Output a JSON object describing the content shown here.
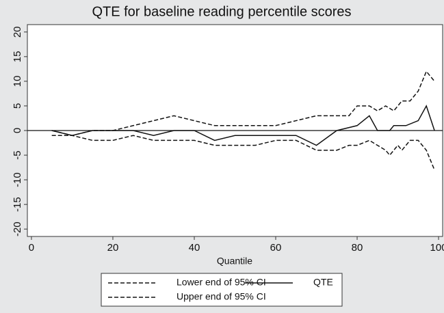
{
  "chart_data": {
    "type": "line",
    "title": "QTE for baseline reading percentile scores",
    "x_label": "Quantile",
    "series": [
      {
        "name": "Lower end of 95% CI",
        "color": "#111111",
        "style": "dashed",
        "x": [
          5,
          10,
          15,
          20,
          25,
          30,
          35,
          40,
          45,
          50,
          55,
          60,
          65,
          70,
          75,
          78,
          80,
          83,
          85,
          87,
          88,
          90,
          91,
          93,
          95,
          97,
          99
        ],
        "values": [
          -1,
          -1,
          -2,
          -2,
          -1,
          -2,
          -2,
          -2,
          -3,
          -3,
          -3,
          -2,
          -2,
          -4,
          -4,
          -3,
          -3,
          -2,
          -3,
          -4,
          -5,
          -3,
          -4,
          -2,
          -2,
          -4,
          -8
        ]
      },
      {
        "name": "QTE",
        "color": "#111111",
        "style": "solid",
        "x": [
          5,
          10,
          15,
          20,
          25,
          30,
          35,
          40,
          45,
          50,
          55,
          60,
          65,
          70,
          75,
          80,
          83,
          85,
          88,
          89,
          92,
          95,
          97,
          99
        ],
        "values": [
          0,
          -1,
          0,
          0,
          0,
          -1,
          0,
          0,
          -2,
          -1,
          -1,
          -1,
          -1,
          -3,
          0,
          1,
          3,
          0,
          0,
          1,
          1,
          2,
          5,
          0
        ]
      },
      {
        "name": "Upper end of 95% CI",
        "color": "#111111",
        "style": "dashed",
        "x": [
          5,
          10,
          15,
          20,
          25,
          30,
          35,
          40,
          45,
          50,
          55,
          60,
          65,
          70,
          75,
          78,
          80,
          83,
          85,
          87,
          89,
          91,
          93,
          95,
          97,
          99
        ],
        "values": [
          0,
          -1,
          0,
          0,
          1,
          2,
          3,
          2,
          1,
          1,
          1,
          1,
          2,
          3,
          3,
          3,
          5,
          5,
          4,
          5,
          4,
          6,
          6,
          8,
          12,
          10
        ]
      }
    ],
    "xlim": [
      -1,
      101
    ],
    "xticks": [
      0,
      20,
      40,
      60,
      80,
      100
    ],
    "ylim": [
      -21.5,
      21.5
    ],
    "yticks": [
      -20,
      -15,
      -10,
      -5,
      0,
      5,
      10,
      15,
      20
    ],
    "reference_line": 0,
    "legend": "bottom"
  }
}
